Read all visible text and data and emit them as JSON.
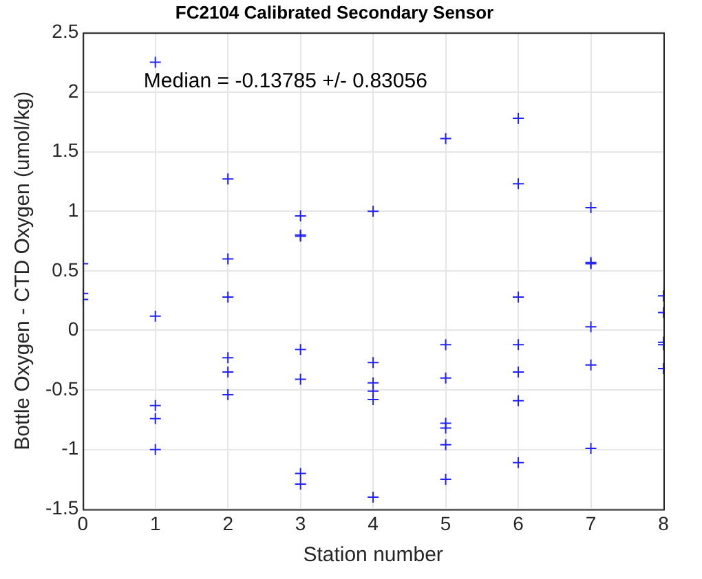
{
  "chart_data": {
    "type": "scatter",
    "title": "FC2104 Calibrated Secondary Sensor",
    "xlabel": "Station number",
    "ylabel": "Bottle Oxygen - CTD Oxygen (umol/kg)",
    "annotations": [
      "Median = -0.13785 +/- 0.83056"
    ],
    "series": [
      {
        "color": "#2222ff",
        "x": [
          0,
          0,
          0,
          1,
          1,
          1,
          1,
          1,
          2,
          2,
          2,
          2,
          2,
          2,
          3,
          3,
          3,
          3,
          3,
          3,
          3,
          4,
          4,
          4,
          4,
          4,
          4,
          5,
          5,
          5,
          5,
          5,
          5,
          5,
          6,
          6,
          6,
          6,
          6,
          6,
          6,
          7,
          7,
          7,
          7,
          7,
          7,
          8,
          8,
          8,
          8,
          8
        ],
        "values": [
          0.56,
          0.31,
          0.26,
          2.25,
          0.12,
          -0.63,
          -0.74,
          -1.0,
          1.27,
          0.6,
          0.28,
          -0.23,
          -0.35,
          -0.54,
          0.96,
          0.8,
          0.79,
          -0.16,
          -0.41,
          -1.2,
          -1.29,
          1.0,
          -0.27,
          -0.44,
          -0.51,
          -0.58,
          -1.4,
          1.61,
          -0.12,
          -0.4,
          -0.78,
          -0.82,
          -0.96,
          -1.25,
          1.78,
          1.23,
          0.28,
          -0.12,
          -0.35,
          -0.59,
          -1.11,
          1.03,
          0.57,
          0.56,
          0.03,
          -0.29,
          -0.99,
          0.29,
          0.15,
          -0.1,
          -0.12,
          -0.32
        ]
      }
    ],
    "xlim": [
      0,
      8
    ],
    "xticks": [
      0,
      1,
      2,
      3,
      4,
      5,
      6,
      7,
      8
    ],
    "ylim": [
      -1.5,
      2.5
    ],
    "yticks": [
      -1.5,
      -1,
      -0.5,
      0,
      0.5,
      1,
      1.5,
      2,
      2.5
    ],
    "grid": true,
    "marker": "cross"
  }
}
